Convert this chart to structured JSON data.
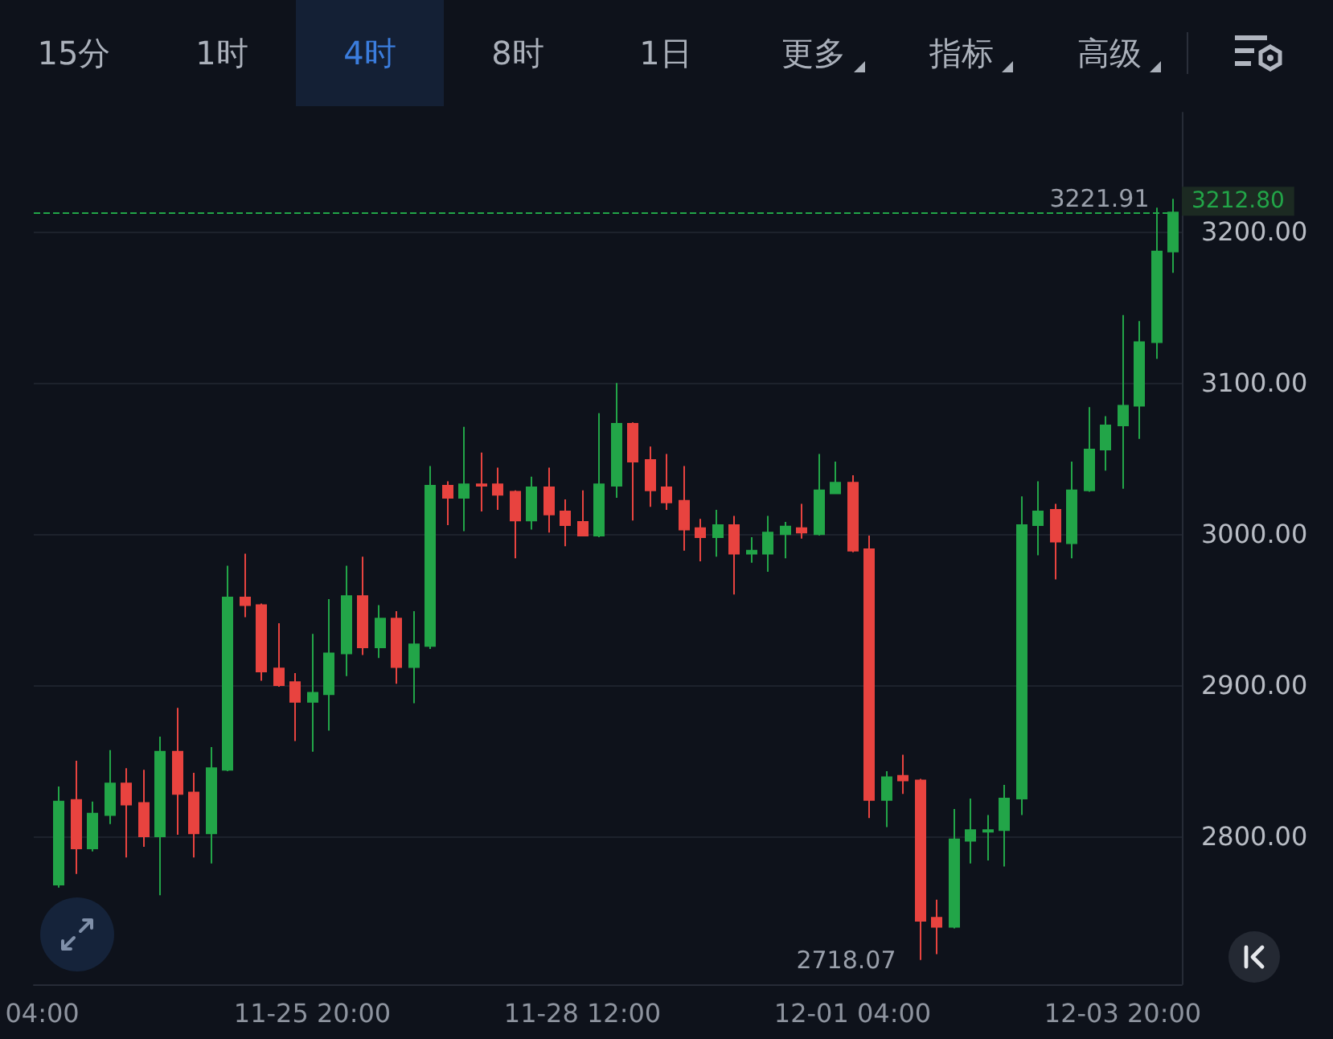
{
  "chart_data": {
    "type": "candlestick",
    "categories": [
      "04:00",
      null,
      null,
      null,
      null,
      null,
      null,
      null,
      null,
      null,
      null,
      null,
      null,
      null,
      null,
      null,
      "11-25 20:00",
      null,
      null,
      null,
      null,
      null,
      null,
      null,
      null,
      null,
      null,
      null,
      null,
      null,
      null,
      null,
      "11-28 12:00",
      null,
      null,
      null,
      null,
      null,
      null,
      null,
      null,
      null,
      null,
      null,
      null,
      null,
      null,
      null,
      "12-01 04:00",
      null,
      null,
      null,
      null,
      null,
      null,
      null,
      null,
      null,
      null,
      null,
      null,
      null,
      null,
      null,
      "12-03 20:00",
      null,
      null,
      null
    ],
    "ohlc": [
      null,
      [
        2768,
        2833,
        2766,
        2823
      ],
      [
        2824,
        2850,
        2775,
        2792
      ],
      [
        2792,
        2823,
        2790,
        2815
      ],
      [
        2814,
        2857,
        2808,
        2835
      ],
      [
        2835,
        2845,
        2786,
        2821
      ],
      [
        2822,
        2844,
        2793,
        2800
      ],
      [
        2800,
        2866,
        2761,
        2856
      ],
      [
        2856,
        2885,
        2801,
        2828
      ],
      [
        2829,
        2842,
        2786,
        2802
      ],
      [
        2802,
        2859,
        2782,
        2845
      ],
      [
        2844,
        2979,
        2843,
        2958
      ],
      [
        2958,
        2987,
        2945,
        2953
      ],
      [
        2953,
        2954,
        2903,
        2909
      ],
      [
        2911,
        2941,
        2899,
        2900
      ],
      [
        2902,
        2908,
        2863,
        2889
      ],
      [
        2889,
        2934,
        2856,
        2895
      ],
      [
        2894,
        2957,
        2870,
        2921
      ],
      [
        2921,
        2979,
        2906,
        2959
      ],
      [
        2959,
        2985,
        2920,
        2925
      ],
      [
        2925,
        2953,
        2918,
        2944
      ],
      [
        2944,
        2949,
        2901,
        2912
      ],
      [
        2912,
        2949,
        2888,
        2927
      ],
      [
        2926,
        3045,
        2924,
        3032
      ],
      [
        3032,
        3035,
        3006,
        3024
      ],
      [
        3024,
        3071,
        3002,
        3033
      ],
      [
        3033,
        3054,
        3015,
        3032
      ],
      [
        3033,
        3044,
        3016,
        3026
      ],
      [
        3028,
        3029,
        2984,
        3009
      ],
      [
        3009,
        3038,
        3003,
        3031
      ],
      [
        3031,
        3044,
        3001,
        3013
      ],
      [
        3015,
        3023,
        2992,
        3006
      ],
      [
        3008,
        3029,
        2999,
        2999
      ],
      [
        2999,
        3080,
        2998,
        3033
      ],
      [
        3032,
        3100,
        3024,
        3073
      ],
      [
        3073,
        3074,
        3009,
        3048
      ],
      [
        3049,
        3058,
        3018,
        3029
      ],
      [
        3031,
        3053,
        3016,
        3021
      ],
      [
        3022,
        3045,
        2989,
        3003
      ],
      [
        3004,
        3010,
        2982,
        2998
      ],
      [
        2998,
        3016,
        2985,
        3006
      ],
      [
        3006,
        3012,
        2960,
        2987
      ],
      [
        2987,
        2998,
        2981,
        2989
      ],
      [
        2987,
        3012,
        2975,
        3001
      ],
      [
        3000,
        3008,
        2984,
        3005
      ],
      [
        3004,
        3020,
        2997,
        3001
      ],
      [
        3000,
        3053,
        2999,
        3029
      ],
      [
        3027,
        3048,
        3027,
        3034
      ],
      [
        3034,
        3039,
        2988,
        2989
      ],
      [
        2990,
        2999,
        2812,
        2824
      ],
      [
        2824,
        2843,
        2806,
        2839
      ],
      [
        2840,
        2854,
        2828,
        2837
      ],
      [
        2837,
        2838,
        2718.07,
        2744
      ],
      [
        2746,
        2758,
        2722,
        2740
      ],
      [
        2740,
        2818,
        2739,
        2798
      ],
      [
        2797,
        2825,
        2782,
        2804
      ],
      [
        2803,
        2814,
        2784,
        2804
      ],
      [
        2804,
        2834,
        2780,
        2825
      ],
      [
        2825,
        3025,
        2814,
        3006
      ],
      [
        3006,
        3035,
        2986,
        3015
      ],
      [
        3016,
        3020,
        2970,
        2995
      ],
      [
        2994,
        3048,
        2984,
        3029
      ],
      [
        3029,
        3084,
        3028,
        3056
      ],
      [
        3056,
        3078,
        3042,
        3072
      ],
      [
        3072,
        3145,
        3030,
        3085
      ],
      [
        3085,
        3141,
        3063,
        3127
      ],
      [
        3127,
        3216,
        3116,
        3187
      ],
      [
        3187,
        3221.91,
        3173,
        3212.8
      ]
    ],
    "ylim": [
      2702,
      3279
    ],
    "yticks": [
      {
        "value": 2800,
        "label": "2800.00"
      },
      {
        "value": 2900,
        "label": "2900.00"
      },
      {
        "value": 3000,
        "label": "3000.00"
      },
      {
        "value": 3100,
        "label": "3100.00"
      },
      {
        "value": 3200,
        "label": "3200.00"
      }
    ],
    "grid": "y",
    "ref_lines": [
      {
        "axis": "y",
        "value": 3212.8,
        "label": "3212.80",
        "color": "#22a548",
        "line_style": "dashed"
      }
    ],
    "annotations": [
      "15分",
      "1时",
      "4时",
      "8时",
      "1日",
      "更多",
      "指标",
      "高级",
      "3221.91",
      "2718.07"
    ]
  }
}
